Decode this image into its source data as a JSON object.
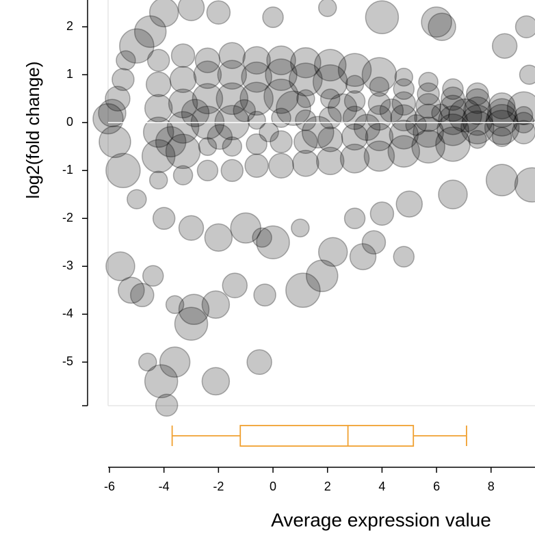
{
  "chart_data": {
    "type": "scatter",
    "xlabel": "Average expression value",
    "ylabel": "log2(fold change)",
    "xlim": [
      -6.05,
      9.6
    ],
    "ylim": [
      -5.91,
      2.56
    ],
    "xticks": [
      -6,
      -4,
      -2,
      0,
      2,
      4,
      6,
      8
    ],
    "yticks": [
      -5,
      -4,
      -3,
      -2,
      -1,
      0,
      1,
      2
    ],
    "color": "#000000",
    "points": [
      [
        -4.2,
        -1.2
      ],
      [
        -4.2,
        -0.7
      ],
      [
        -4.2,
        -0.2
      ],
      [
        -4.2,
        0.3
      ],
      [
        -4.2,
        0.8
      ],
      [
        -4.2,
        1.3
      ],
      [
        -3.3,
        -1.1
      ],
      [
        -3.3,
        -0.6
      ],
      [
        -3.3,
        -0.1
      ],
      [
        -3.3,
        0.4
      ],
      [
        -3.3,
        0.9
      ],
      [
        -3.3,
        1.4
      ],
      [
        -2.4,
        -1.0
      ],
      [
        -2.4,
        -0.5
      ],
      [
        -2.4,
        0.0
      ],
      [
        -2.4,
        0.5
      ],
      [
        -2.4,
        1.0
      ],
      [
        -2.4,
        1.3
      ],
      [
        -1.5,
        -1.0
      ],
      [
        -1.5,
        -0.5
      ],
      [
        -1.5,
        0.0
      ],
      [
        -1.5,
        0.5
      ],
      [
        -1.5,
        1.0
      ],
      [
        -1.5,
        1.4
      ],
      [
        -0.6,
        -0.9
      ],
      [
        -0.6,
        -0.45
      ],
      [
        -0.6,
        0.05
      ],
      [
        -0.6,
        0.5
      ],
      [
        -0.6,
        0.95
      ],
      [
        -0.6,
        1.3
      ],
      [
        0.3,
        -0.9
      ],
      [
        0.3,
        -0.4
      ],
      [
        0.3,
        0.1
      ],
      [
        0.3,
        0.55
      ],
      [
        0.3,
        1.0
      ],
      [
        0.3,
        1.3
      ],
      [
        1.2,
        -0.85
      ],
      [
        1.2,
        -0.4
      ],
      [
        1.2,
        0.05
      ],
      [
        1.2,
        0.5
      ],
      [
        1.2,
        0.9
      ],
      [
        1.2,
        1.25
      ],
      [
        2.1,
        -0.8
      ],
      [
        2.1,
        -0.35
      ],
      [
        2.1,
        0.1
      ],
      [
        2.1,
        0.5
      ],
      [
        2.1,
        0.85
      ],
      [
        2.1,
        1.2
      ],
      [
        3.0,
        -0.75
      ],
      [
        3.0,
        -0.3
      ],
      [
        3.0,
        0.1
      ],
      [
        3.0,
        0.45
      ],
      [
        3.0,
        0.8
      ],
      [
        3.0,
        1.1
      ],
      [
        3.9,
        -0.7
      ],
      [
        3.9,
        -0.3
      ],
      [
        3.9,
        0.1
      ],
      [
        3.9,
        0.4
      ],
      [
        3.9,
        0.75
      ],
      [
        3.9,
        1.0
      ],
      [
        4.8,
        -0.6
      ],
      [
        4.8,
        -0.25
      ],
      [
        4.8,
        0.1
      ],
      [
        4.8,
        0.4
      ],
      [
        4.8,
        0.7
      ],
      [
        4.8,
        0.95
      ],
      [
        5.7,
        -0.5
      ],
      [
        5.7,
        -0.2
      ],
      [
        5.7,
        0.1
      ],
      [
        5.7,
        0.35
      ],
      [
        5.7,
        0.6
      ],
      [
        5.7,
        0.85
      ],
      [
        6.6,
        -0.45
      ],
      [
        6.6,
        -0.15
      ],
      [
        6.6,
        0.05
      ],
      [
        6.6,
        0.3
      ],
      [
        6.6,
        0.5
      ],
      [
        6.6,
        0.7
      ],
      [
        7.5,
        -0.35
      ],
      [
        7.5,
        -0.1
      ],
      [
        7.5,
        0.05
      ],
      [
        7.5,
        0.25
      ],
      [
        7.5,
        0.45
      ],
      [
        7.5,
        0.6
      ],
      [
        8.4,
        -0.3
      ],
      [
        8.4,
        -0.1
      ],
      [
        8.4,
        0.05
      ],
      [
        8.4,
        0.2
      ],
      [
        8.4,
        0.35
      ],
      [
        9.2,
        -0.2
      ],
      [
        9.2,
        0.0
      ],
      [
        9.2,
        0.15
      ],
      [
        9.2,
        0.3
      ],
      [
        -3.75,
        -0.4
      ],
      [
        -2.85,
        0.2
      ],
      [
        -1.95,
        -0.3
      ],
      [
        -1.05,
        0.25
      ],
      [
        -0.15,
        -0.2
      ],
      [
        0.75,
        0.3
      ],
      [
        1.65,
        -0.2
      ],
      [
        2.55,
        0.3
      ],
      [
        3.45,
        -0.1
      ],
      [
        4.35,
        0.25
      ],
      [
        5.25,
        -0.05
      ],
      [
        6.15,
        0.2
      ],
      [
        7.05,
        0.15
      ],
      [
        -6.05,
        0.08
      ],
      [
        -5.9,
        0.2
      ],
      [
        -5.7,
        0.5
      ],
      [
        -5.5,
        0.9
      ],
      [
        -5.4,
        1.3
      ],
      [
        -5.0,
        1.6
      ],
      [
        -4.5,
        1.9
      ],
      [
        -4.0,
        2.3
      ],
      [
        -3.0,
        2.4
      ],
      [
        -2.0,
        2.3
      ],
      [
        0.0,
        2.2
      ],
      [
        2.0,
        2.4
      ],
      [
        4.0,
        2.2
      ],
      [
        6.0,
        2.1
      ],
      [
        6.2,
        2.0
      ],
      [
        8.5,
        1.6
      ],
      [
        9.3,
        2.0
      ],
      [
        9.4,
        1.0
      ],
      [
        9.5,
        -1.3
      ],
      [
        8.4,
        -1.2
      ],
      [
        6.6,
        -1.5
      ],
      [
        5.0,
        -1.7
      ],
      [
        4.0,
        -1.9
      ],
      [
        3.0,
        -2.0
      ],
      [
        1.0,
        -2.2
      ],
      [
        0.0,
        -2.5
      ],
      [
        -1.0,
        -2.2
      ],
      [
        -2.0,
        -2.4
      ],
      [
        -3.0,
        -2.2
      ],
      [
        -4.0,
        -2.0
      ],
      [
        -5.0,
        -1.6
      ],
      [
        -5.5,
        -1.0
      ],
      [
        -5.8,
        -0.4
      ],
      [
        -5.6,
        -3.0
      ],
      [
        -5.2,
        -3.5
      ],
      [
        -4.8,
        -3.6
      ],
      [
        -4.4,
        -3.2
      ],
      [
        -3.6,
        -3.8
      ],
      [
        -3.0,
        -4.2
      ],
      [
        -2.9,
        -3.9
      ],
      [
        -2.1,
        -3.8
      ],
      [
        -1.4,
        -3.4
      ],
      [
        -0.3,
        -3.6
      ],
      [
        -0.4,
        -2.4
      ],
      [
        1.1,
        -3.5
      ],
      [
        1.8,
        -3.2
      ],
      [
        2.2,
        -2.7
      ],
      [
        3.3,
        -2.8
      ],
      [
        3.7,
        -2.5
      ],
      [
        4.8,
        -2.8
      ],
      [
        -4.6,
        -5.0
      ],
      [
        -4.1,
        -5.4
      ],
      [
        -3.6,
        -5.0
      ],
      [
        -2.1,
        -5.4
      ],
      [
        -0.5,
        -5.0
      ],
      [
        -3.9,
        -5.9
      ]
    ],
    "boxplot": {
      "color": "#f0a030",
      "min": -3.7,
      "q1": -1.2,
      "median": 2.75,
      "q3": 5.15,
      "max": 7.1
    }
  }
}
